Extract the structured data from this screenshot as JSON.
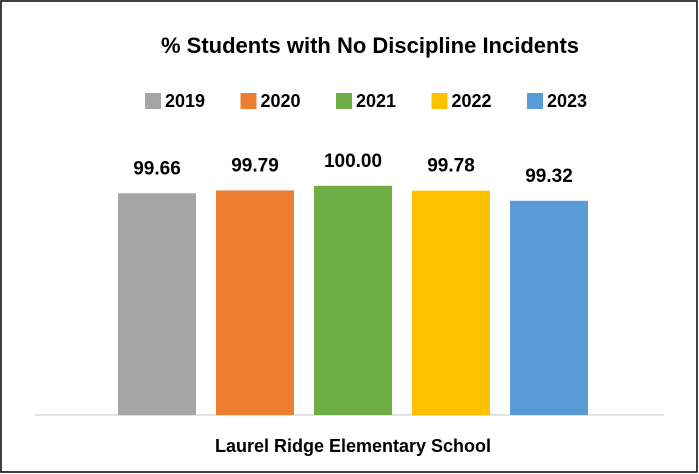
{
  "chart_data": {
    "type": "bar",
    "title": "% Students with No Discipline Incidents",
    "categories": [
      "Laurel Ridge Elementary School"
    ],
    "series": [
      {
        "name": "2019",
        "color": "#a5a5a5",
        "values": [
          99.66
        ],
        "value_labels": [
          "99.66"
        ]
      },
      {
        "name": "2020",
        "color": "#ed7d31",
        "values": [
          99.79
        ],
        "value_labels": [
          "99.79"
        ]
      },
      {
        "name": "2021",
        "color": "#70ad47",
        "values": [
          100
        ],
        "value_labels": [
          "100.00"
        ]
      },
      {
        "name": "2022",
        "color": "#ffc000",
        "values": [
          99.78
        ],
        "value_labels": [
          "99.78"
        ]
      },
      {
        "name": "2023",
        "color": "#5b9bd5",
        "values": [
          99.32
        ],
        "value_labels": [
          "99.32"
        ]
      }
    ],
    "ylim": [
      89.6,
      100.4
    ],
    "legend": "top"
  }
}
